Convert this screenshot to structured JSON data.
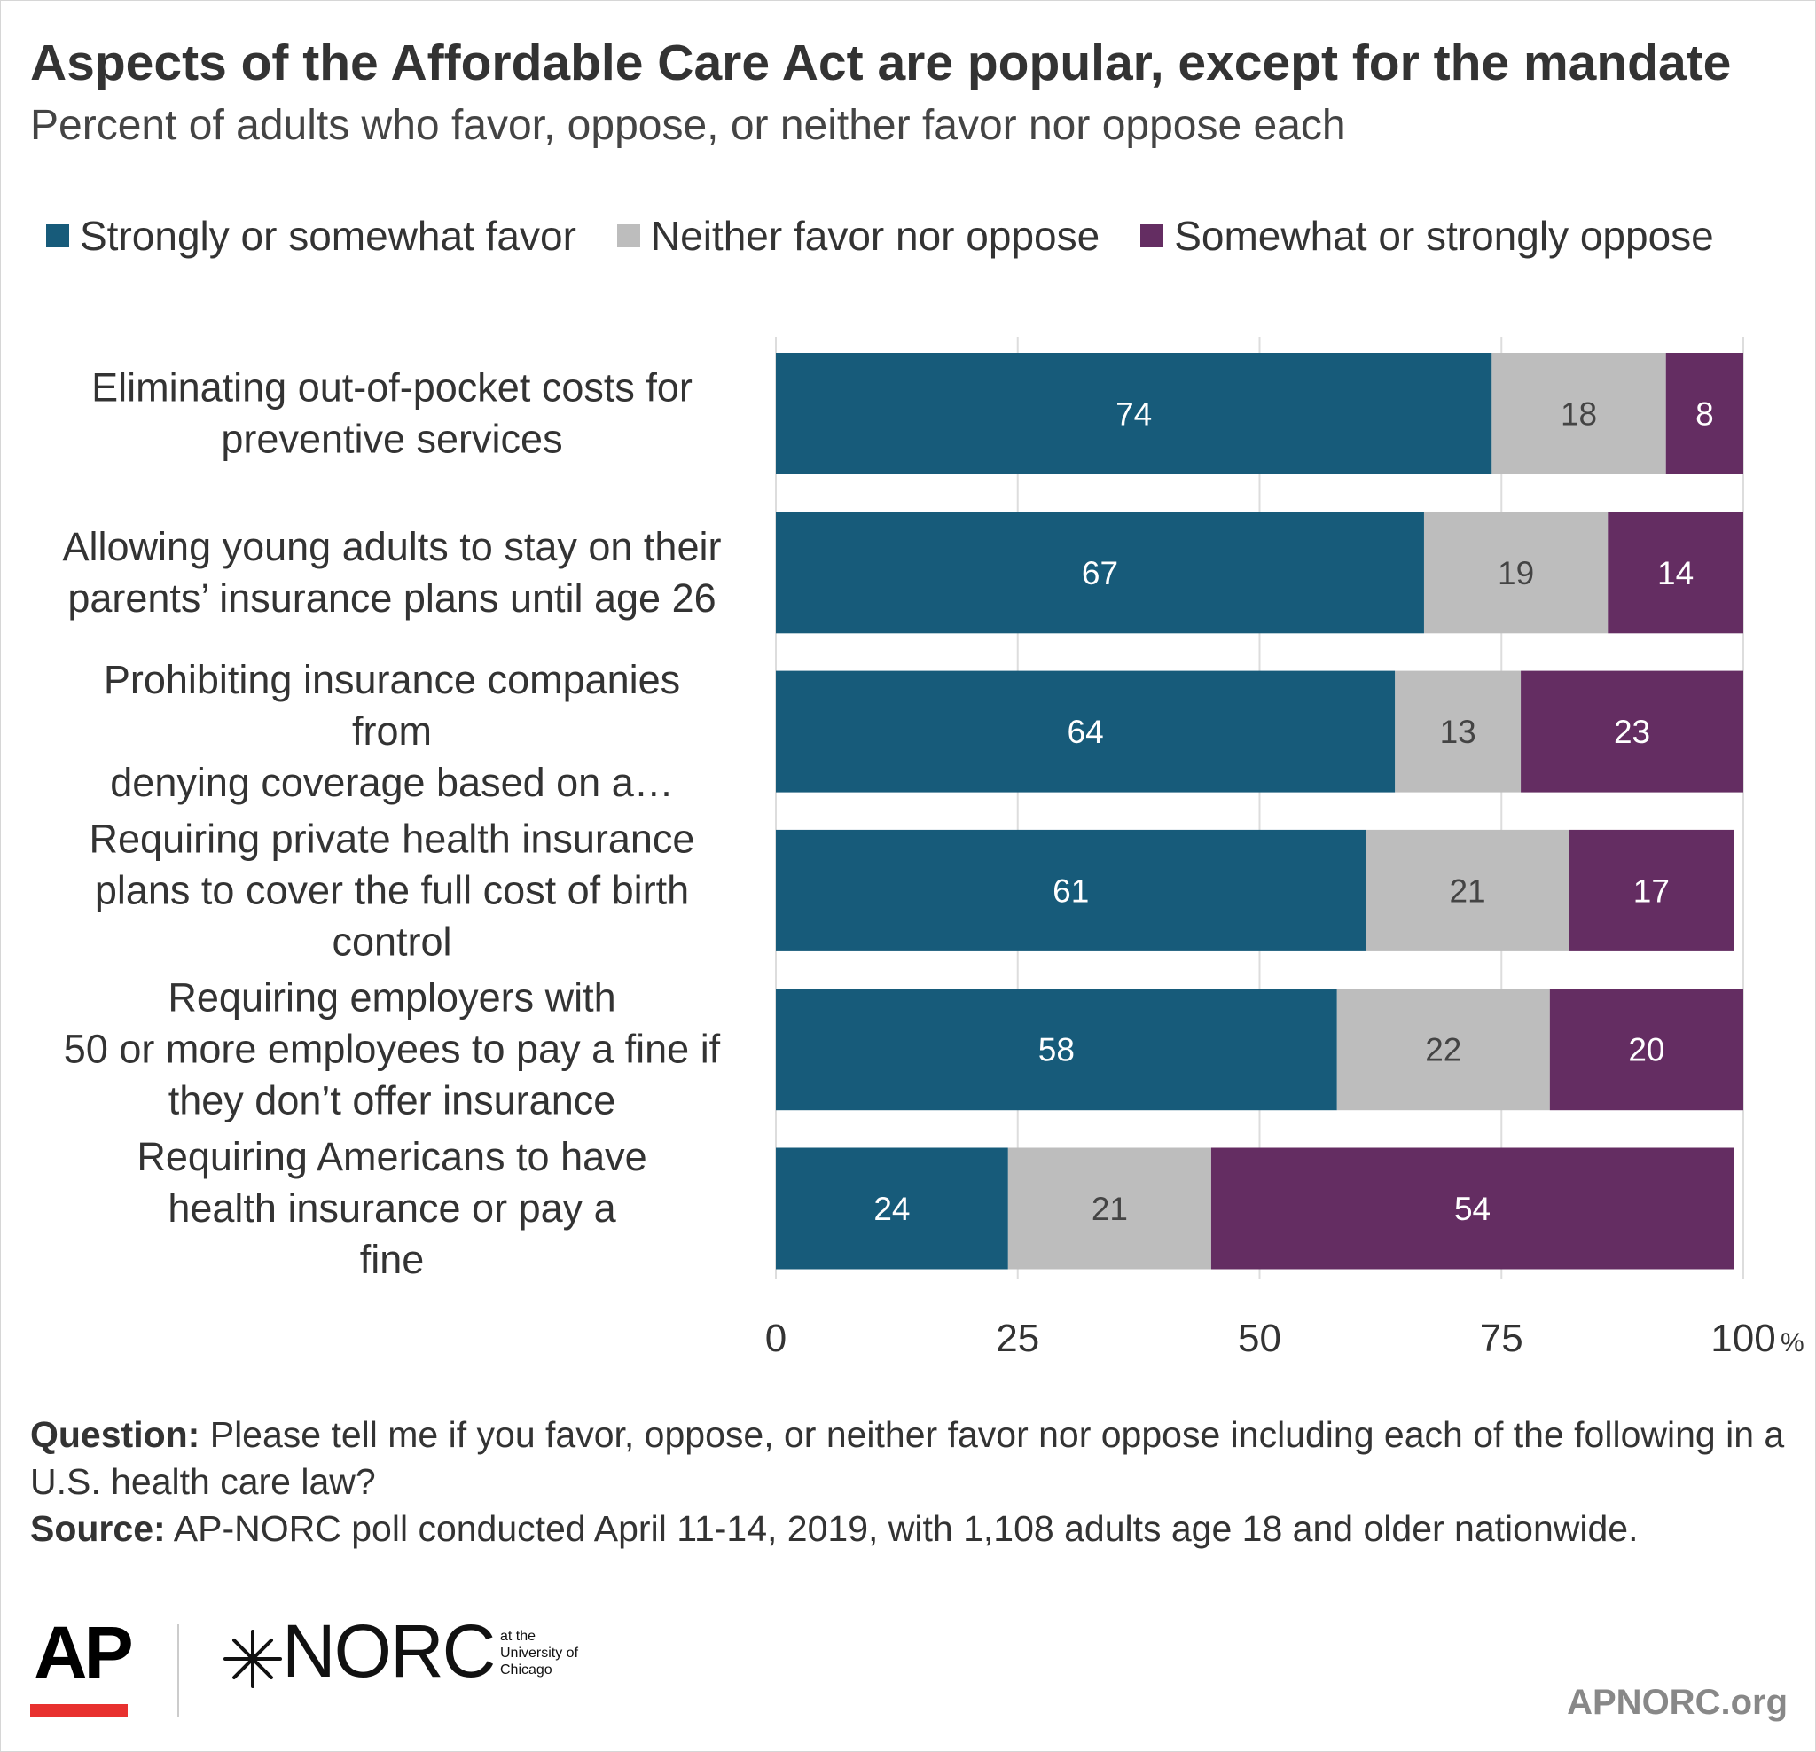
{
  "header": {
    "title": "Aspects of the Affordable Care Act are popular, except for the mandate",
    "subtitle": "Percent of adults who favor, oppose, or neither favor nor oppose each"
  },
  "colors": {
    "favor": "#175b7a",
    "neither": "#bdbdbd",
    "oppose": "#642d62",
    "grid": "#dddddd",
    "text": "#333333"
  },
  "chart_data": {
    "type": "bar",
    "orientation": "horizontal",
    "stacked": true,
    "categories": [
      [
        "Eliminating out-of-pocket costs for",
        "preventive services"
      ],
      [
        "Allowing young adults to stay on their",
        "parents’ insurance plans until age 26"
      ],
      [
        "Prohibiting insurance companies",
        "from",
        "denying coverage based on a…"
      ],
      [
        "Requiring private health insurance",
        "plans to cover the full cost of birth",
        "control"
      ],
      [
        "Requiring employers with",
        "50 or more employees to pay a fine if",
        "they don’t offer insurance"
      ],
      [
        "Requiring Americans to have",
        "health insurance or pay a",
        "fine"
      ]
    ],
    "series": [
      {
        "name": "Strongly or somewhat favor",
        "values": [
          74,
          67,
          64,
          61,
          58,
          24
        ]
      },
      {
        "name": "Neither favor nor oppose",
        "values": [
          18,
          19,
          13,
          21,
          22,
          21
        ]
      },
      {
        "name": "Somewhat or strongly oppose",
        "values": [
          8,
          14,
          23,
          17,
          20,
          54
        ]
      }
    ],
    "xlim": [
      0,
      100
    ],
    "xticks": [
      "0",
      "25",
      "50",
      "75",
      "100"
    ],
    "xunit": "%",
    "grid": true,
    "legend_position": "top"
  },
  "footer": {
    "question_label": "Question:",
    "question_text": " Please tell me if you favor, oppose, or neither favor nor oppose including each of the following in a U.S. health care law?",
    "source_label": "Source:",
    "source_text": " AP-NORC poll conducted April 11-14, 2019, with 1,108 adults age 18 and older nationwide.",
    "logo_ap": "AP",
    "logo_norc": "NORC",
    "logo_norc_sub": [
      "at the",
      "University of",
      "Chicago"
    ],
    "site": "APNORC.org"
  }
}
